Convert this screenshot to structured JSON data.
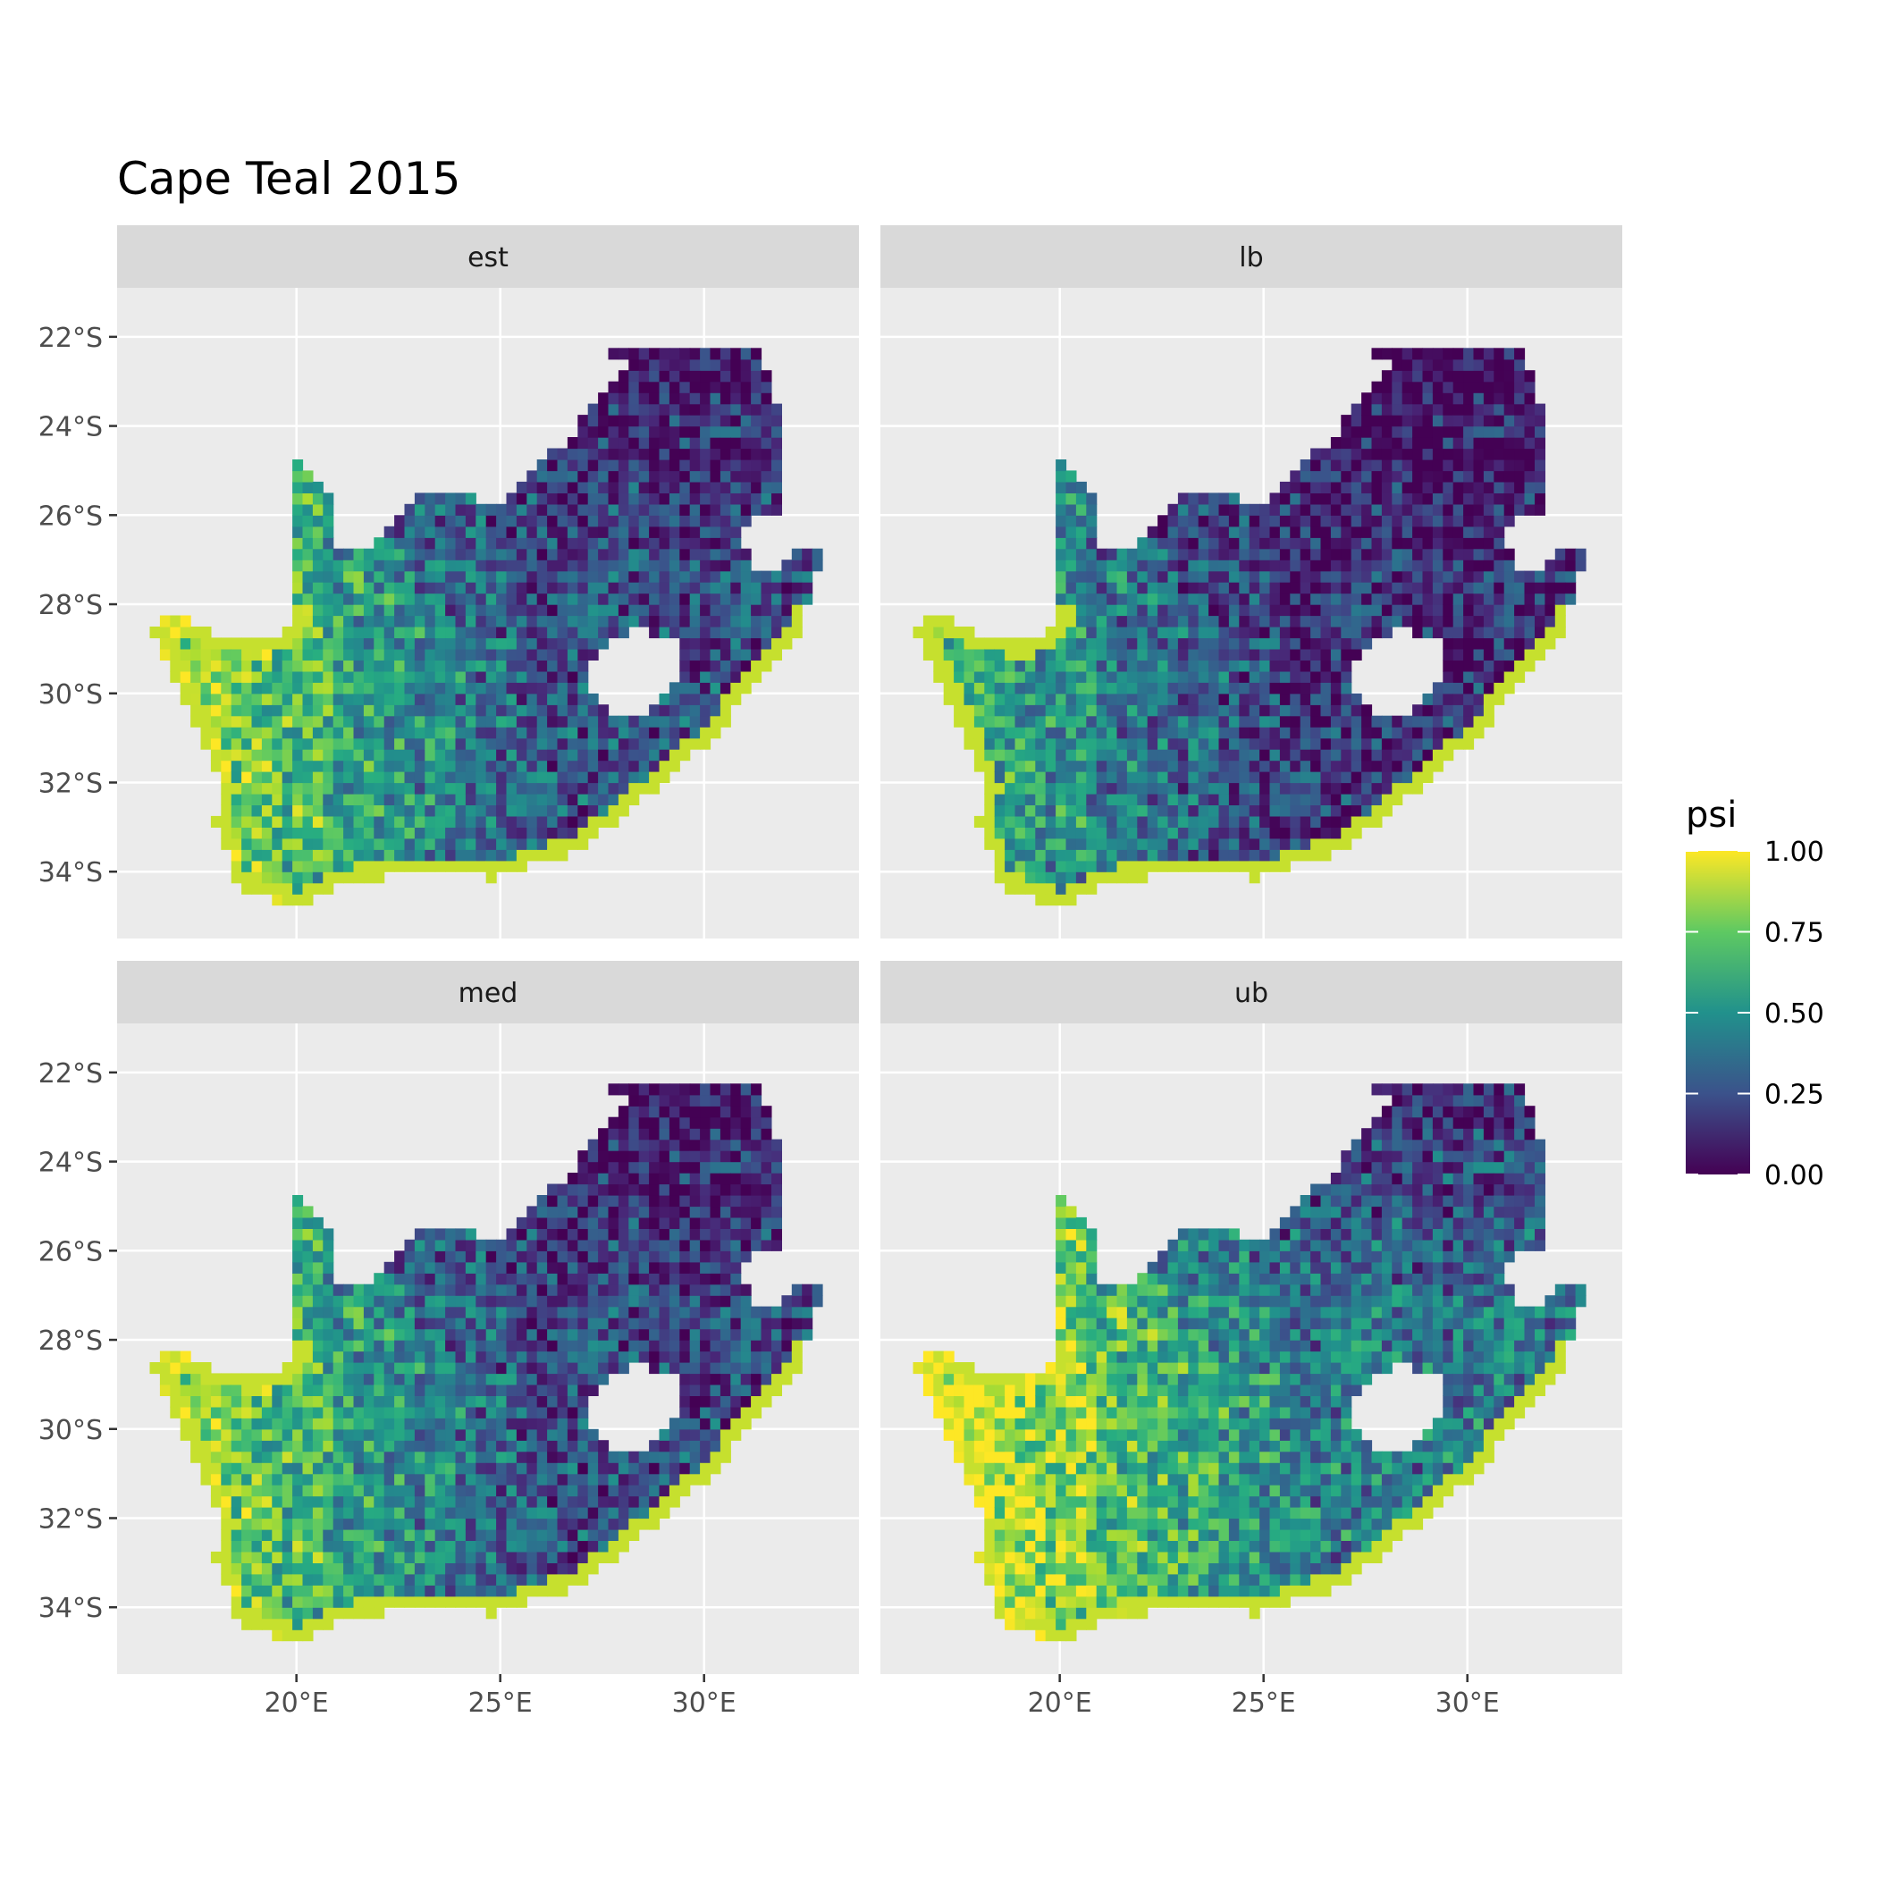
{
  "chart_data": {
    "type": "heatmap",
    "subtype": "faceted-map",
    "title": "Cape Teal 2015",
    "xlabel": "",
    "ylabel": "",
    "xlim": [
      15.6,
      33.8
    ],
    "ylim": [
      -35.5,
      -20.9
    ],
    "x_ticks": [
      {
        "value": 20,
        "label": "20°E"
      },
      {
        "value": 25,
        "label": "25°E"
      },
      {
        "value": 30,
        "label": "30°E"
      }
    ],
    "y_ticks": [
      {
        "value": -22,
        "label": "22°S"
      },
      {
        "value": -24,
        "label": "24°S"
      },
      {
        "value": -26,
        "label": "26°S"
      },
      {
        "value": -28,
        "label": "28°S"
      },
      {
        "value": -30,
        "label": "30°S"
      },
      {
        "value": -32,
        "label": "32°S"
      },
      {
        "value": -34,
        "label": "34°S"
      }
    ],
    "grid": true,
    "facets": [
      {
        "label": "est",
        "west_mean": 0.82,
        "east_mean": 0.25,
        "north_mean": 0.08
      },
      {
        "label": "lb",
        "west_mean": 0.62,
        "east_mean": 0.14,
        "north_mean": 0.03
      },
      {
        "label": "med",
        "west_mean": 0.8,
        "east_mean": 0.23,
        "north_mean": 0.07
      },
      {
        "label": "ub",
        "west_mean": 0.93,
        "east_mean": 0.42,
        "north_mean": 0.15
      }
    ],
    "legend": {
      "title": "psi",
      "placement": "right",
      "range": [
        0,
        1
      ],
      "breaks": [
        {
          "value": 1.0,
          "label": "1.00"
        },
        {
          "value": 0.75,
          "label": "0.75"
        },
        {
          "value": 0.5,
          "label": "0.50"
        },
        {
          "value": 0.25,
          "label": "0.25"
        },
        {
          "value": 0.0,
          "label": "0.00"
        }
      ],
      "colormap": "viridis",
      "colors": [
        "#440154",
        "#3b528b",
        "#21918c",
        "#5ec962",
        "#fde725"
      ]
    },
    "colors": {
      "panel_background": "#ebebeb",
      "strip_background": "#d9d9d9",
      "grid_line": "#ffffff"
    }
  }
}
